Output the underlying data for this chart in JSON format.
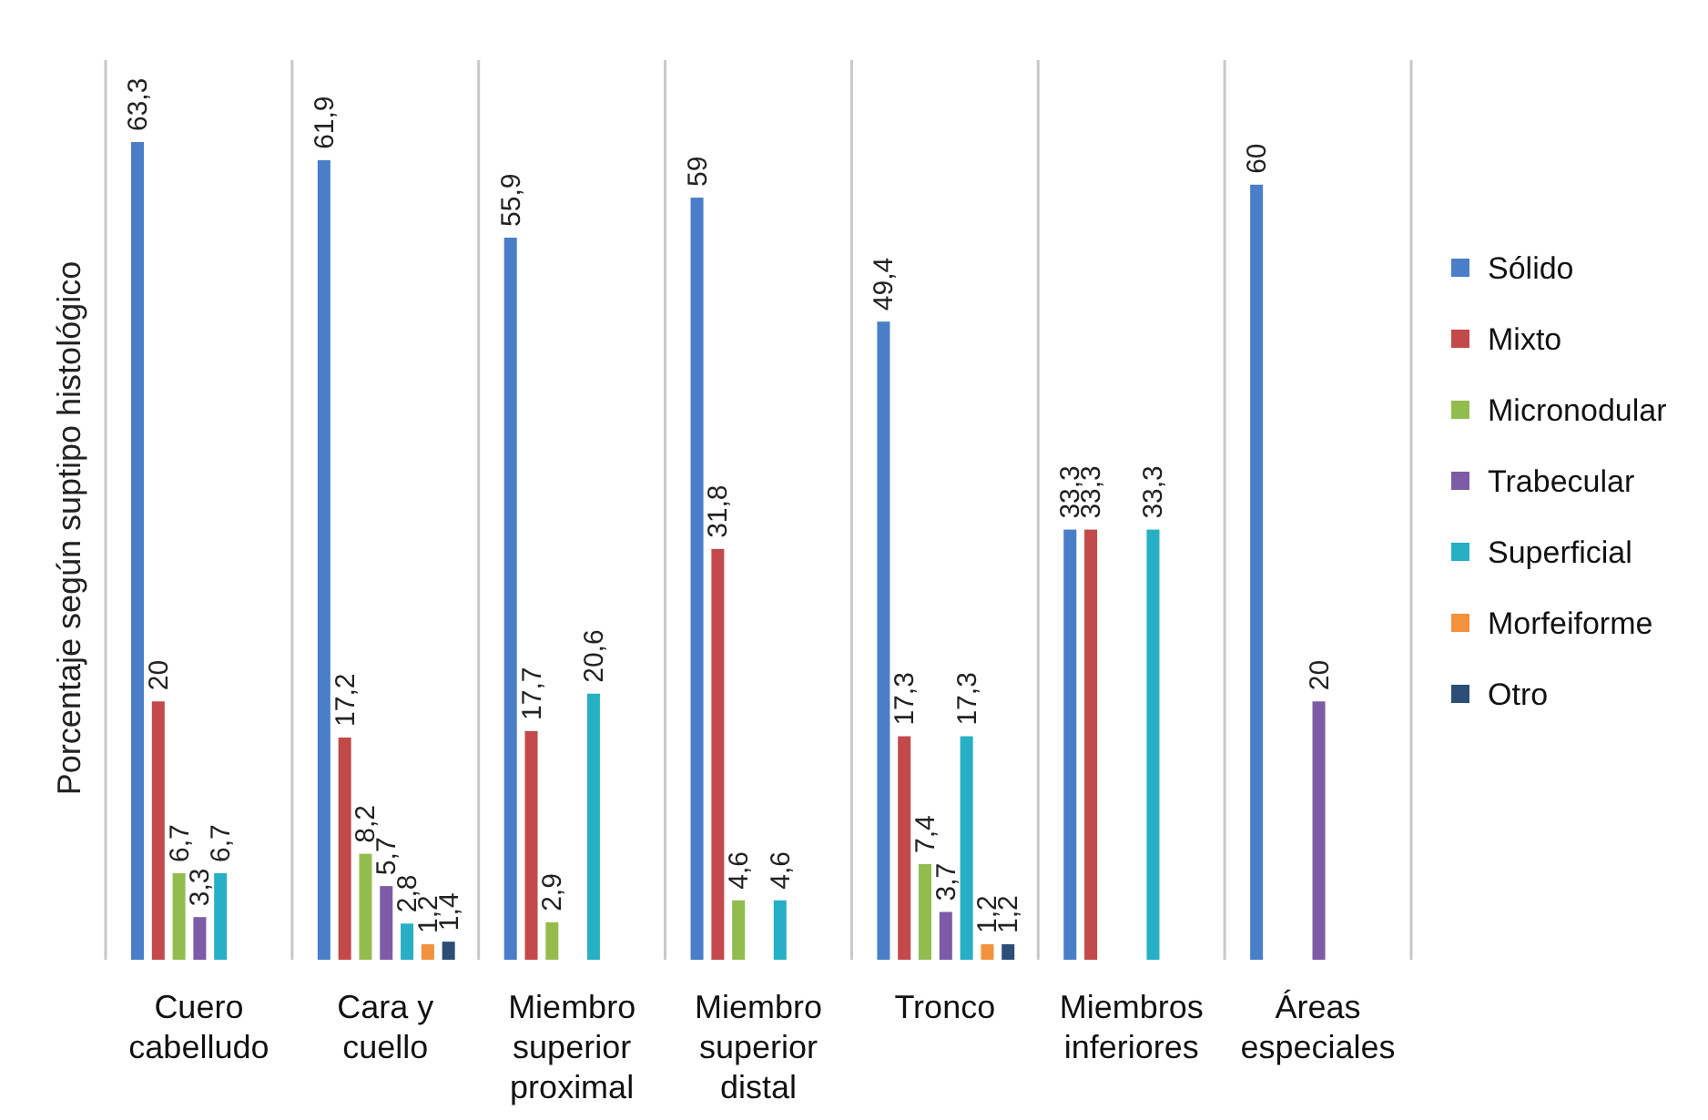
{
  "chart_data": {
    "type": "bar",
    "ylabel": "Porcentaje según suptipo histológico",
    "categories": [
      "Cuero cabelludo",
      "Cara y cuello",
      "Miembro superior proximal",
      "Miembro superior distal",
      "Tronco",
      "Miembros inferiores",
      "Áreas especiales"
    ],
    "series": [
      {
        "name": "Sólido",
        "color": "#4a7ec8",
        "values": [
          63.3,
          61.9,
          55.9,
          59,
          49.4,
          33.3,
          60
        ],
        "value_labels": [
          "63,3",
          "61,9",
          "55,9",
          "59",
          "49,4",
          "33,3",
          "60"
        ]
      },
      {
        "name": "Mixto",
        "color": "#c3494a",
        "values": [
          20,
          17.2,
          17.7,
          31.8,
          17.3,
          33.3,
          null
        ],
        "value_labels": [
          "20",
          "17,2",
          "17,7",
          "31,8",
          "17,3",
          "33,3",
          null
        ]
      },
      {
        "name": "Micronodular",
        "color": "#93bc4f",
        "values": [
          6.7,
          8.2,
          2.9,
          4.6,
          7.4,
          null,
          null
        ],
        "value_labels": [
          "6,7",
          "8,2",
          "2,9",
          "4,6",
          "7,4",
          null,
          null
        ]
      },
      {
        "name": "Trabecular",
        "color": "#7d5ba6",
        "values": [
          3.3,
          5.7,
          null,
          null,
          3.7,
          null,
          20
        ],
        "value_labels": [
          "3,3",
          "5,7",
          null,
          null,
          "3,7",
          null,
          "20"
        ]
      },
      {
        "name": "Superficial",
        "color": "#27afc6",
        "values": [
          6.7,
          2.8,
          20.6,
          4.6,
          17.3,
          33.3,
          null
        ],
        "value_labels": [
          "6,7",
          "2,8",
          "20,6",
          "4,6",
          "17,3",
          "33,3",
          null
        ]
      },
      {
        "name": "Morfeiforme",
        "color": "#f4913d",
        "values": [
          null,
          1.2,
          null,
          null,
          1.2,
          null,
          null
        ],
        "value_labels": [
          null,
          "1,2",
          null,
          null,
          "1,2",
          null,
          null
        ]
      },
      {
        "name": "Otro",
        "color": "#2c4d75",
        "values": [
          null,
          1.4,
          null,
          null,
          1.2,
          null,
          null
        ],
        "value_labels": [
          null,
          "1,4",
          null,
          null,
          "1,2",
          null,
          null
        ]
      }
    ],
    "grid": "x",
    "legend": "right",
    "tick_labels": "x"
  }
}
